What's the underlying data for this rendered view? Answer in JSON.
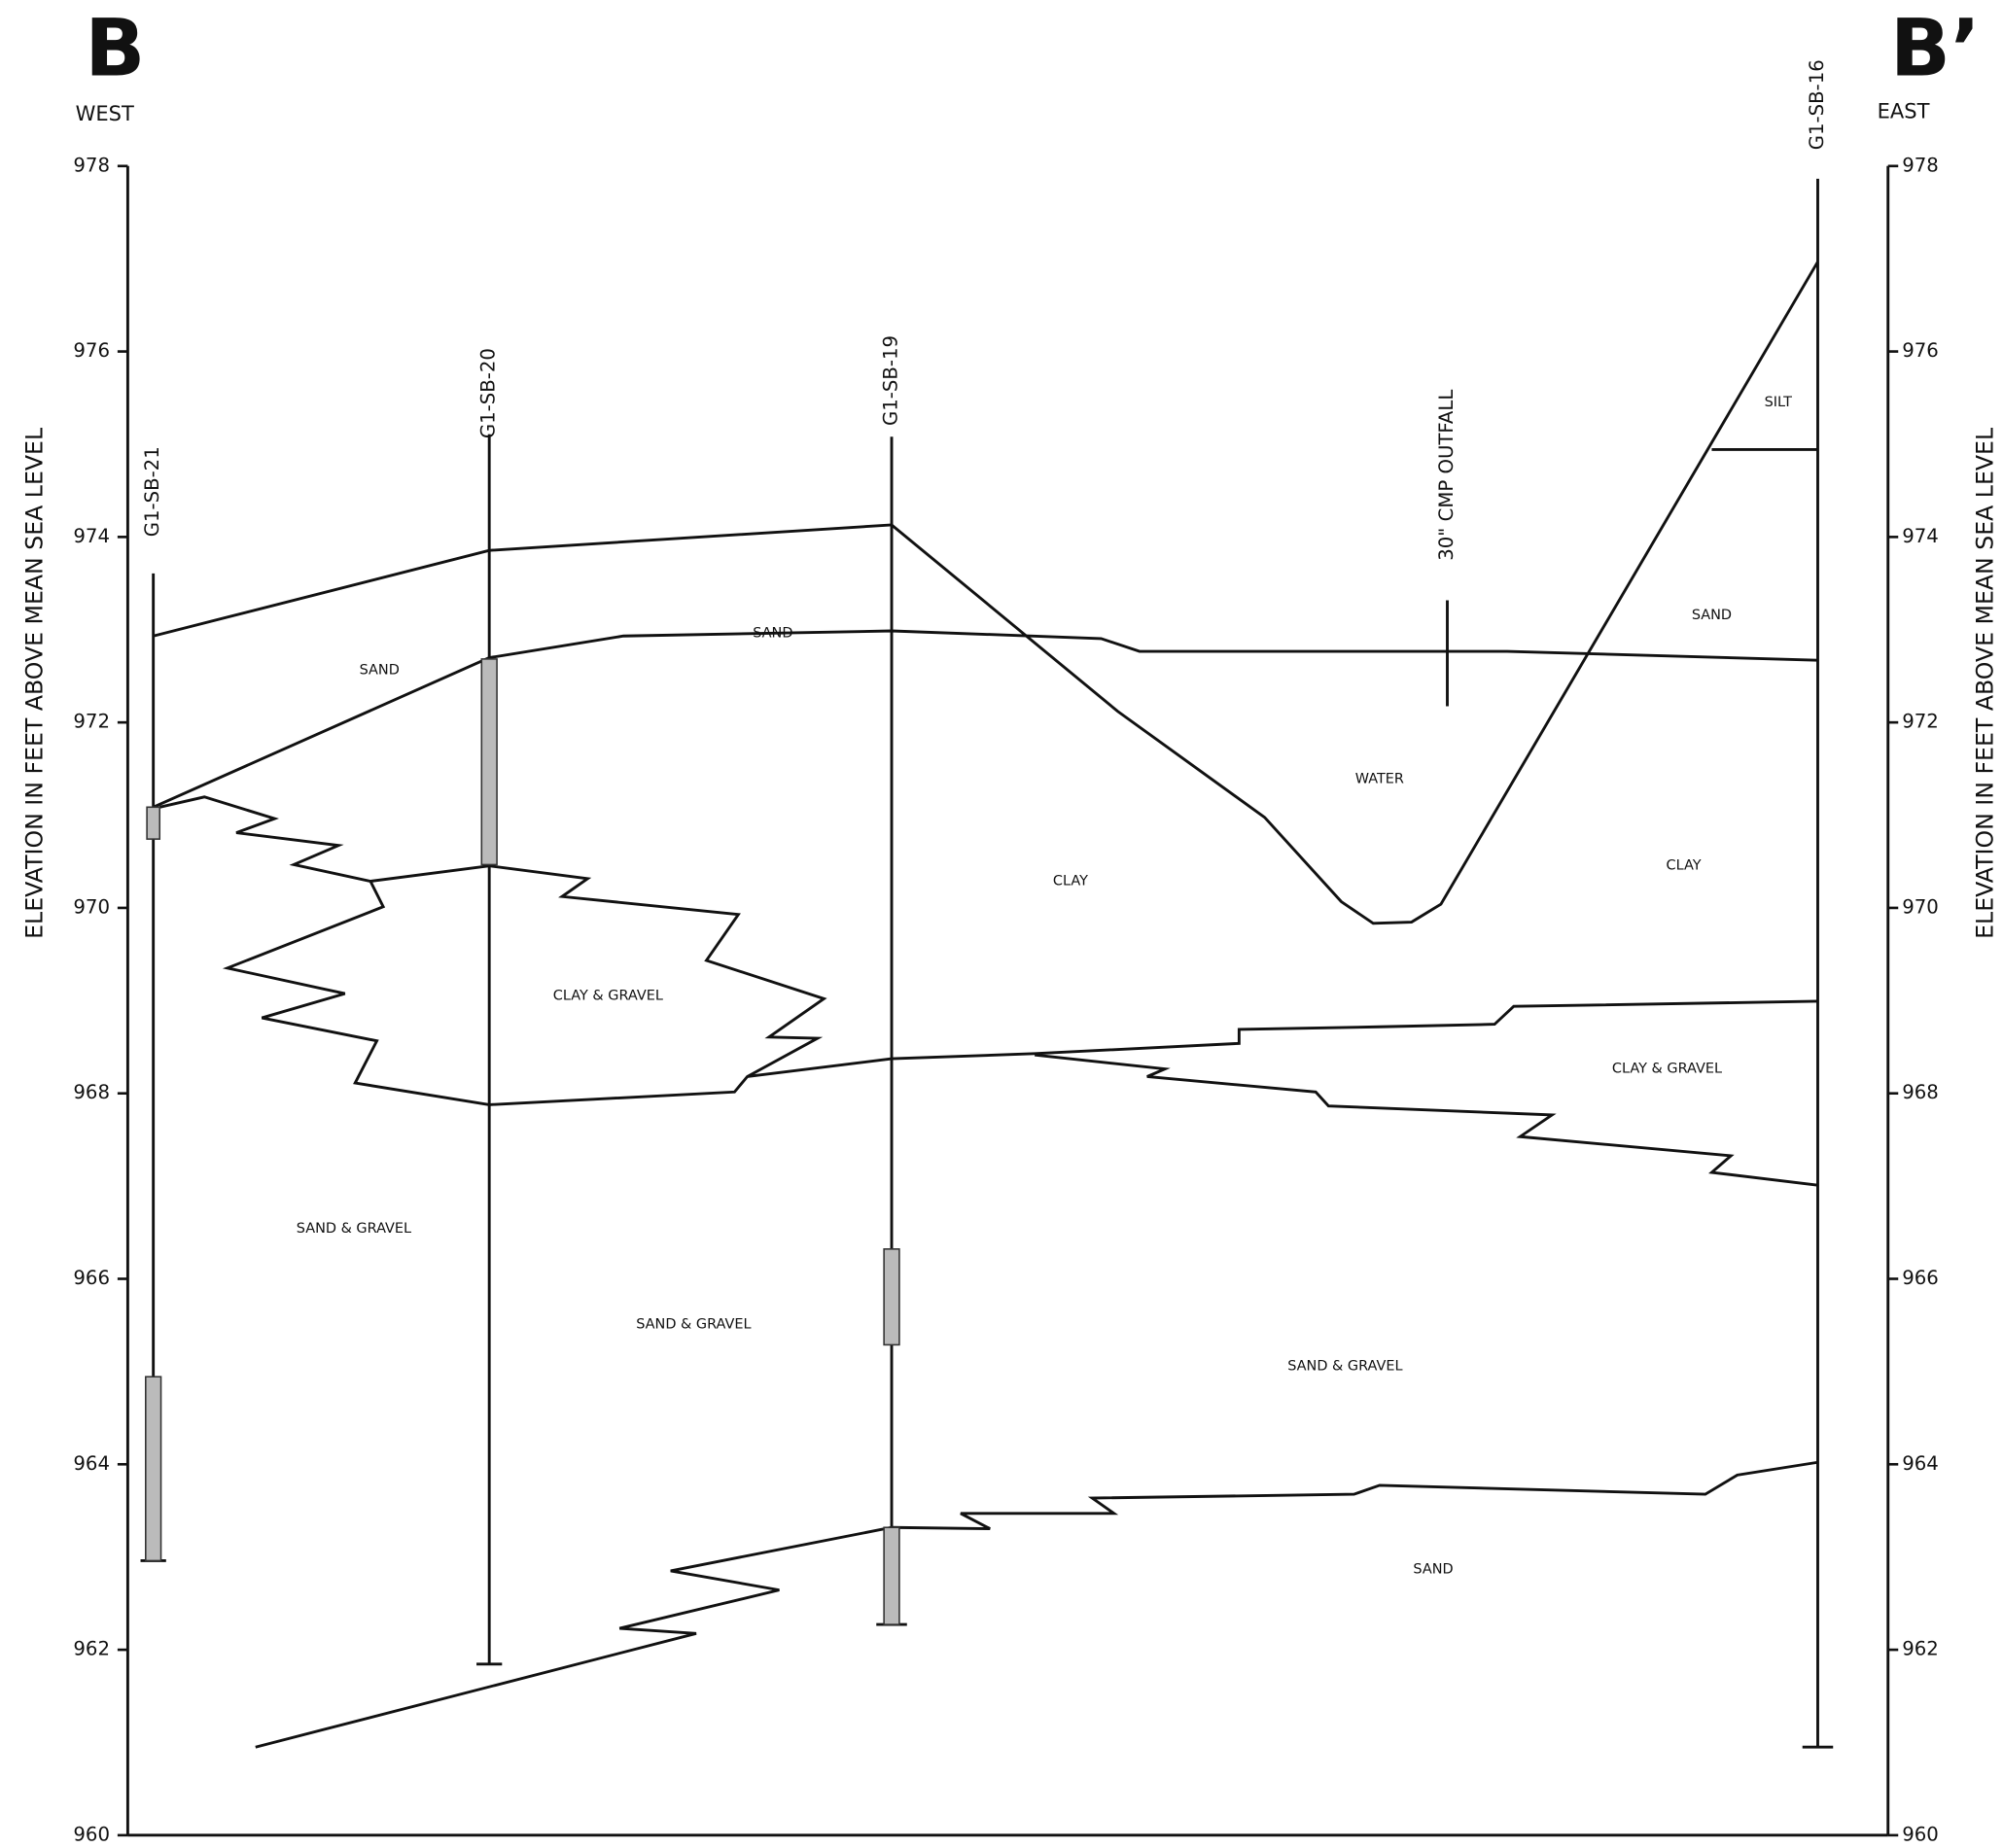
{
  "header": {
    "left_label": "B",
    "left_direction": "WEST",
    "right_label": "B’",
    "right_direction": "EAST"
  },
  "axis": {
    "title": "ELEVATION IN FEET ABOVE MEAN SEA LEVEL",
    "ticks": [
      "978",
      "976",
      "974",
      "972",
      "970",
      "968",
      "966",
      "964",
      "962",
      "960"
    ]
  },
  "borings": [
    "G1-SB-21",
    "G1-SB-20",
    "G1-SB-19",
    "G1-SB-16"
  ],
  "features": [
    "30\" CMP OUTFALL"
  ],
  "layers": [
    "SAND",
    "SAND",
    "SAND",
    "SILT",
    "WATER",
    "CLAY",
    "CLAY",
    "CLAY & GRAVEL",
    "CLAY & GRAVEL",
    "SAND & GRAVEL",
    "SAND & GRAVEL",
    "SAND & GRAVEL",
    "SAND"
  ]
}
